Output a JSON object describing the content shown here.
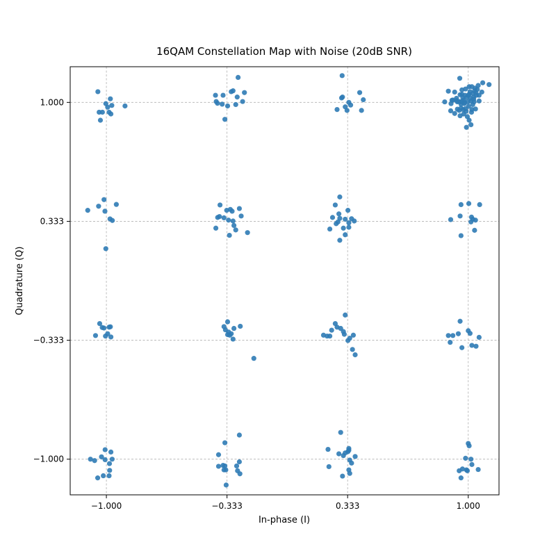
{
  "chart_data": {
    "type": "scatter",
    "title": "16QAM Constellation Map with Noise (20dB SNR)",
    "xlabel": "In-phase (I)",
    "ylabel": "Quadrature (Q)",
    "xlim": [
      -1.2,
      1.17
    ],
    "ylim": [
      -1.2,
      1.2
    ],
    "xticks": [
      -1.0,
      -0.3333,
      0.3333,
      1.0
    ],
    "yticks": [
      -1.0,
      -0.3333,
      0.3333,
      1.0
    ],
    "xtick_labels": [
      "−1.000",
      "−0.333",
      "0.333",
      "1.000"
    ],
    "ytick_labels": [
      "−1.000",
      "−0.333",
      "0.333",
      "1.000"
    ],
    "grid": true,
    "point_color": "#2f7bb5",
    "points": [
      [
        -1.047,
        1.06
      ],
      [
        -1.04,
        0.945
      ],
      [
        -1.033,
        0.9
      ],
      [
        -1.022,
        0.945
      ],
      [
        -1.003,
        0.993
      ],
      [
        -0.993,
        0.973
      ],
      [
        -0.985,
        0.945
      ],
      [
        -0.978,
        1.02
      ],
      [
        -0.975,
        0.935
      ],
      [
        -0.97,
        0.983
      ],
      [
        -0.897,
        0.98
      ],
      [
        -1.103,
        0.395
      ],
      [
        -1.043,
        0.418
      ],
      [
        -1.013,
        0.455
      ],
      [
        -1.008,
        0.39
      ],
      [
        -0.98,
        0.347
      ],
      [
        -0.967,
        0.338
      ],
      [
        -0.945,
        0.428
      ],
      [
        -1.003,
        0.18
      ],
      [
        -1.06,
        -0.307
      ],
      [
        -1.037,
        -0.24
      ],
      [
        -1.023,
        -0.262
      ],
      [
        -1.013,
        -0.265
      ],
      [
        -1.005,
        -0.31
      ],
      [
        -0.993,
        -0.297
      ],
      [
        -0.985,
        -0.26
      ],
      [
        -0.978,
        -0.258
      ],
      [
        -0.975,
        -0.315
      ],
      [
        -1.088,
        -1.0
      ],
      [
        -1.065,
        -1.008
      ],
      [
        -1.048,
        -1.105
      ],
      [
        -1.027,
        -0.987
      ],
      [
        -1.017,
        -1.093
      ],
      [
        -1.007,
        -1.003
      ],
      [
        -1.007,
        -0.947
      ],
      [
        -0.985,
        -1.093
      ],
      [
        -0.982,
        -1.063
      ],
      [
        -0.975,
        -0.96
      ],
      [
        -0.968,
        -1.0
      ],
      [
        -0.983,
        -1.025
      ],
      [
        -0.397,
        1.04
      ],
      [
        -0.393,
        1.005
      ],
      [
        -0.386,
        0.995
      ],
      [
        -0.36,
        0.99
      ],
      [
        -0.355,
        1.04
      ],
      [
        -0.33,
        0.98
      ],
      [
        -0.31,
        1.06
      ],
      [
        -0.3,
        1.065
      ],
      [
        -0.285,
        0.988
      ],
      [
        -0.277,
        1.03
      ],
      [
        -0.272,
        1.14
      ],
      [
        -0.247,
        1.005
      ],
      [
        -0.237,
        1.055
      ],
      [
        -0.345,
        0.905
      ],
      [
        -0.395,
        0.295
      ],
      [
        -0.385,
        0.355
      ],
      [
        -0.375,
        0.36
      ],
      [
        -0.372,
        0.425
      ],
      [
        -0.35,
        0.353
      ],
      [
        -0.335,
        0.395
      ],
      [
        -0.325,
        0.34
      ],
      [
        -0.315,
        0.4
      ],
      [
        -0.305,
        0.39
      ],
      [
        -0.3,
        0.335
      ],
      [
        -0.295,
        0.31
      ],
      [
        -0.285,
        0.285
      ],
      [
        -0.265,
        0.405
      ],
      [
        -0.255,
        0.363
      ],
      [
        -0.32,
        0.255
      ],
      [
        -0.22,
        0.27
      ],
      [
        -0.35,
        -0.257
      ],
      [
        -0.342,
        -0.275
      ],
      [
        -0.33,
        -0.23
      ],
      [
        -0.325,
        -0.287
      ],
      [
        -0.318,
        -0.305
      ],
      [
        -0.31,
        -0.297
      ],
      [
        -0.3,
        -0.327
      ],
      [
        -0.295,
        -0.267
      ],
      [
        -0.26,
        -0.255
      ],
      [
        -0.185,
        -0.435
      ],
      [
        -0.33,
        -0.302
      ],
      [
        -0.38,
        -0.975
      ],
      [
        -0.38,
        -1.04
      ],
      [
        -0.355,
        -1.035
      ],
      [
        -0.35,
        -1.06
      ],
      [
        -0.345,
        -1.038
      ],
      [
        -0.34,
        -1.06
      ],
      [
        -0.345,
        -0.908
      ],
      [
        -0.338,
        -1.145
      ],
      [
        -0.28,
        -1.038
      ],
      [
        -0.275,
        -1.065
      ],
      [
        -0.265,
        -1.015
      ],
      [
        -0.262,
        -1.082
      ],
      [
        -0.265,
        -0.865
      ],
      [
        0.275,
        0.96
      ],
      [
        0.3,
        1.025
      ],
      [
        0.305,
        1.03
      ],
      [
        0.303,
        1.15
      ],
      [
        0.32,
        0.975
      ],
      [
        0.33,
        0.955
      ],
      [
        0.35,
        0.985
      ],
      [
        0.34,
        1.0
      ],
      [
        0.4,
        1.055
      ],
      [
        0.42,
        1.015
      ],
      [
        0.41,
        0.955
      ],
      [
        0.235,
        0.29
      ],
      [
        0.25,
        0.355
      ],
      [
        0.265,
        0.425
      ],
      [
        0.27,
        0.32
      ],
      [
        0.28,
        0.33
      ],
      [
        0.285,
        0.375
      ],
      [
        0.29,
        0.35
      ],
      [
        0.29,
        0.47
      ],
      [
        0.31,
        0.295
      ],
      [
        0.32,
        0.345
      ],
      [
        0.32,
        0.258
      ],
      [
        0.335,
        0.395
      ],
      [
        0.34,
        0.3
      ],
      [
        0.34,
        0.325
      ],
      [
        0.355,
        0.348
      ],
      [
        0.37,
        0.335
      ],
      [
        0.29,
        0.227
      ],
      [
        0.2,
        -0.305
      ],
      [
        0.22,
        -0.31
      ],
      [
        0.235,
        -0.31
      ],
      [
        0.245,
        -0.277
      ],
      [
        0.265,
        -0.24
      ],
      [
        0.275,
        -0.26
      ],
      [
        0.295,
        -0.267
      ],
      [
        0.31,
        -0.285
      ],
      [
        0.315,
        -0.3
      ],
      [
        0.32,
        -0.192
      ],
      [
        0.335,
        -0.335
      ],
      [
        0.345,
        -0.322
      ],
      [
        0.365,
        -0.305
      ],
      [
        0.36,
        -0.385
      ],
      [
        0.375,
        -0.415
      ],
      [
        0.225,
        -0.945
      ],
      [
        0.23,
        -1.042
      ],
      [
        0.285,
        -0.97
      ],
      [
        0.295,
        -0.85
      ],
      [
        0.305,
        -1.095
      ],
      [
        0.31,
        -0.98
      ],
      [
        0.32,
        -0.965
      ],
      [
        0.335,
        -0.958
      ],
      [
        0.34,
        -0.95
      ],
      [
        0.34,
        -0.94
      ],
      [
        0.345,
        -1.005
      ],
      [
        0.34,
        -1.06
      ],
      [
        0.345,
        -1.08
      ],
      [
        0.355,
        -1.022
      ],
      [
        0.375,
        -0.985
      ],
      [
        0.87,
        1.003
      ],
      [
        0.89,
        1.063
      ],
      [
        0.903,
        0.953
      ],
      [
        0.905,
        0.993
      ],
      [
        0.915,
        1.013
      ],
      [
        0.925,
        0.938
      ],
      [
        0.935,
        1.01
      ],
      [
        0.94,
        1.003
      ],
      [
        0.95,
        1.005
      ],
      [
        0.955,
        1.043
      ],
      [
        0.96,
        0.99
      ],
      [
        0.96,
        0.968
      ],
      [
        0.965,
        1.07
      ],
      [
        0.97,
        1.025
      ],
      [
        0.972,
        0.96
      ],
      [
        0.975,
        1.013
      ],
      [
        0.978,
        0.993
      ],
      [
        0.98,
        1.0
      ],
      [
        0.982,
        1.04
      ],
      [
        0.985,
        0.965
      ],
      [
        0.988,
        0.95
      ],
      [
        0.992,
        1.028
      ],
      [
        0.995,
        0.92
      ],
      [
        0.998,
        1.003
      ],
      [
        1.0,
        1.04
      ],
      [
        1.002,
        0.978
      ],
      [
        1.005,
        1.045
      ],
      [
        1.005,
        1.088
      ],
      [
        1.01,
        1.06
      ],
      [
        1.012,
        1.023
      ],
      [
        1.015,
        1.008
      ],
      [
        1.018,
        0.945
      ],
      [
        1.02,
        1.088
      ],
      [
        1.025,
        1.05
      ],
      [
        1.03,
        1.03
      ],
      [
        1.032,
        1.003
      ],
      [
        1.035,
        1.065
      ],
      [
        1.038,
        1.08
      ],
      [
        1.04,
        0.963
      ],
      [
        1.042,
        1.055
      ],
      [
        1.045,
        1.04
      ],
      [
        1.05,
        1.073
      ],
      [
        1.055,
        1.095
      ],
      [
        1.06,
        1.04
      ],
      [
        0.965,
        1.045
      ],
      [
        0.985,
        1.075
      ],
      [
        1.005,
        0.9
      ],
      [
        0.975,
        0.935
      ],
      [
        1.015,
        0.875
      ],
      [
        1.02,
        0.96
      ],
      [
        1.03,
        1.018
      ],
      [
        0.91,
        1.012
      ],
      [
        0.94,
        0.962
      ],
      [
        1.06,
        1.008
      ],
      [
        1.075,
        1.058
      ],
      [
        0.99,
        0.86
      ],
      [
        0.95,
        0.955
      ],
      [
        1.025,
        0.988
      ],
      [
        0.955,
        0.925
      ],
      [
        1.08,
        1.11
      ],
      [
        1.115,
        1.1
      ],
      [
        0.925,
        1.058
      ],
      [
        0.935,
        1.023
      ],
      [
        0.96,
        1.003
      ],
      [
        0.953,
        1.135
      ],
      [
        0.903,
        0.343
      ],
      [
        0.955,
        0.363
      ],
      [
        0.96,
        0.427
      ],
      [
        0.96,
        0.253
      ],
      [
        1.003,
        0.433
      ],
      [
        1.015,
        0.33
      ],
      [
        1.018,
        0.357
      ],
      [
        1.025,
        0.345
      ],
      [
        1.035,
        0.283
      ],
      [
        1.04,
        0.34
      ],
      [
        1.063,
        0.427
      ],
      [
        0.89,
        -0.307
      ],
      [
        0.9,
        -0.345
      ],
      [
        0.915,
        -0.307
      ],
      [
        0.945,
        -0.297
      ],
      [
        0.955,
        -0.227
      ],
      [
        0.965,
        -0.375
      ],
      [
        1.0,
        -0.28
      ],
      [
        1.01,
        -0.295
      ],
      [
        1.02,
        -0.362
      ],
      [
        1.043,
        -0.367
      ],
      [
        1.06,
        -0.317
      ],
      [
        0.96,
        -1.105
      ],
      [
        0.95,
        -1.065
      ],
      [
        0.968,
        -1.055
      ],
      [
        0.985,
        -0.995
      ],
      [
        0.99,
        -1.06
      ],
      [
        0.995,
        -1.065
      ],
      [
        1.0,
        -0.912
      ],
      [
        1.005,
        -0.925
      ],
      [
        1.015,
        -1.0
      ],
      [
        1.02,
        -1.03
      ],
      [
        1.055,
        -1.058
      ]
    ]
  }
}
